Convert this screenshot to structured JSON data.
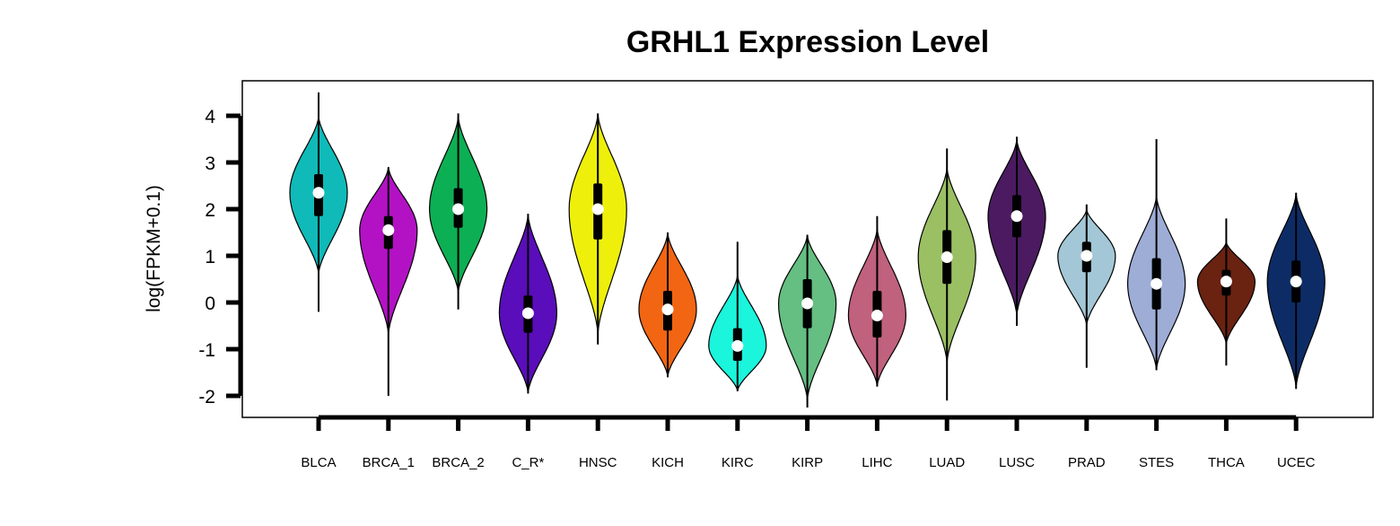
{
  "chart_data": {
    "type": "violin",
    "title": "GRHL1 Expression Level",
    "ylabel": "log(FPKM+0.1)",
    "xlabel": "",
    "ylim": [
      -2.5,
      4.8
    ],
    "yticks": [
      4,
      3,
      2,
      1,
      0,
      -1,
      -2
    ],
    "ytick_labels": [
      "4",
      "3",
      "2",
      "1",
      "0",
      "-1",
      "-2"
    ],
    "grid": false,
    "legend": "none",
    "categories": [
      "BLCA",
      "BRCA_1",
      "BRCA_2",
      "C_R*",
      "HNSC",
      "KICH",
      "KIRC",
      "KIRP",
      "LIHC",
      "LUAD",
      "LUSC",
      "PRAD",
      "STES",
      "THCA",
      "UCEC"
    ],
    "colors": [
      "#0FBAB8",
      "#B312C4",
      "#0DAF54",
      "#5A0DBA",
      "#EEF00B",
      "#F26512",
      "#1AF5DC",
      "#65BE82",
      "#C0617D",
      "#9BBF63",
      "#4B1A60",
      "#A3C7D6",
      "#9EADD6",
      "#6A2211",
      "#0D2C66"
    ],
    "series": [
      {
        "category": "BLCA",
        "min": -0.2,
        "q1": 1.85,
        "median": 2.35,
        "q3": 2.75,
        "max": 4.5,
        "violin_bottom": 0.6,
        "violin_top": 4.0
      },
      {
        "category": "BRCA_1",
        "min": -2.0,
        "q1": 1.15,
        "median": 1.55,
        "q3": 1.85,
        "max": 2.9,
        "violin_bottom": -0.7,
        "violin_top": 2.9
      },
      {
        "category": "BRCA_2",
        "min": -0.15,
        "q1": 1.6,
        "median": 2.0,
        "q3": 2.45,
        "max": 4.05,
        "violin_bottom": 0.2,
        "violin_top": 4.0
      },
      {
        "category": "C_R*",
        "min": -1.95,
        "q1": -0.65,
        "median": -0.23,
        "q3": 0.15,
        "max": 1.9,
        "violin_bottom": -1.95,
        "violin_top": 1.9
      },
      {
        "category": "HNSC",
        "min": -0.9,
        "q1": 1.35,
        "median": 2.0,
        "q3": 2.55,
        "max": 4.05,
        "violin_bottom": -0.7,
        "violin_top": 4.05
      },
      {
        "category": "KICH",
        "min": -1.6,
        "q1": -0.6,
        "median": -0.15,
        "q3": 0.25,
        "max": 1.5,
        "violin_bottom": -1.6,
        "violin_top": 1.5
      },
      {
        "category": "KIRC",
        "min": -1.9,
        "q1": -1.25,
        "median": -0.93,
        "q3": -0.55,
        "max": 1.3,
        "violin_bottom": -1.9,
        "violin_top": 0.6
      },
      {
        "category": "KIRP",
        "min": -2.25,
        "q1": -0.55,
        "median": -0.02,
        "q3": 0.5,
        "max": 1.45,
        "violin_bottom": -2.1,
        "violin_top": 1.45
      },
      {
        "category": "LIHC",
        "min": -1.8,
        "q1": -0.75,
        "median": -0.28,
        "q3": 0.25,
        "max": 1.85,
        "violin_bottom": -1.8,
        "violin_top": 1.6
      },
      {
        "category": "LUAD",
        "min": -2.1,
        "q1": 0.4,
        "median": 0.97,
        "q3": 1.55,
        "max": 3.3,
        "violin_bottom": -1.3,
        "violin_top": 2.9
      },
      {
        "category": "LUSC",
        "min": -0.5,
        "q1": 1.4,
        "median": 1.85,
        "q3": 2.3,
        "max": 3.55,
        "violin_bottom": -0.3,
        "violin_top": 3.5
      },
      {
        "category": "PRAD",
        "min": -1.4,
        "q1": 0.65,
        "median": 1.0,
        "q3": 1.3,
        "max": 2.1,
        "violin_bottom": -0.5,
        "violin_top": 2.0
      },
      {
        "category": "STES",
        "min": -1.45,
        "q1": -0.15,
        "median": 0.4,
        "q3": 0.95,
        "max": 3.5,
        "violin_bottom": -1.45,
        "violin_top": 2.3
      },
      {
        "category": "THCA",
        "min": -1.35,
        "q1": 0.15,
        "median": 0.45,
        "q3": 0.7,
        "max": 1.8,
        "violin_bottom": -0.9,
        "violin_top": 1.3
      },
      {
        "category": "UCEC",
        "min": -1.85,
        "q1": 0.0,
        "median": 0.45,
        "q3": 0.9,
        "max": 2.35,
        "violin_bottom": -1.85,
        "violin_top": 2.35
      }
    ]
  }
}
